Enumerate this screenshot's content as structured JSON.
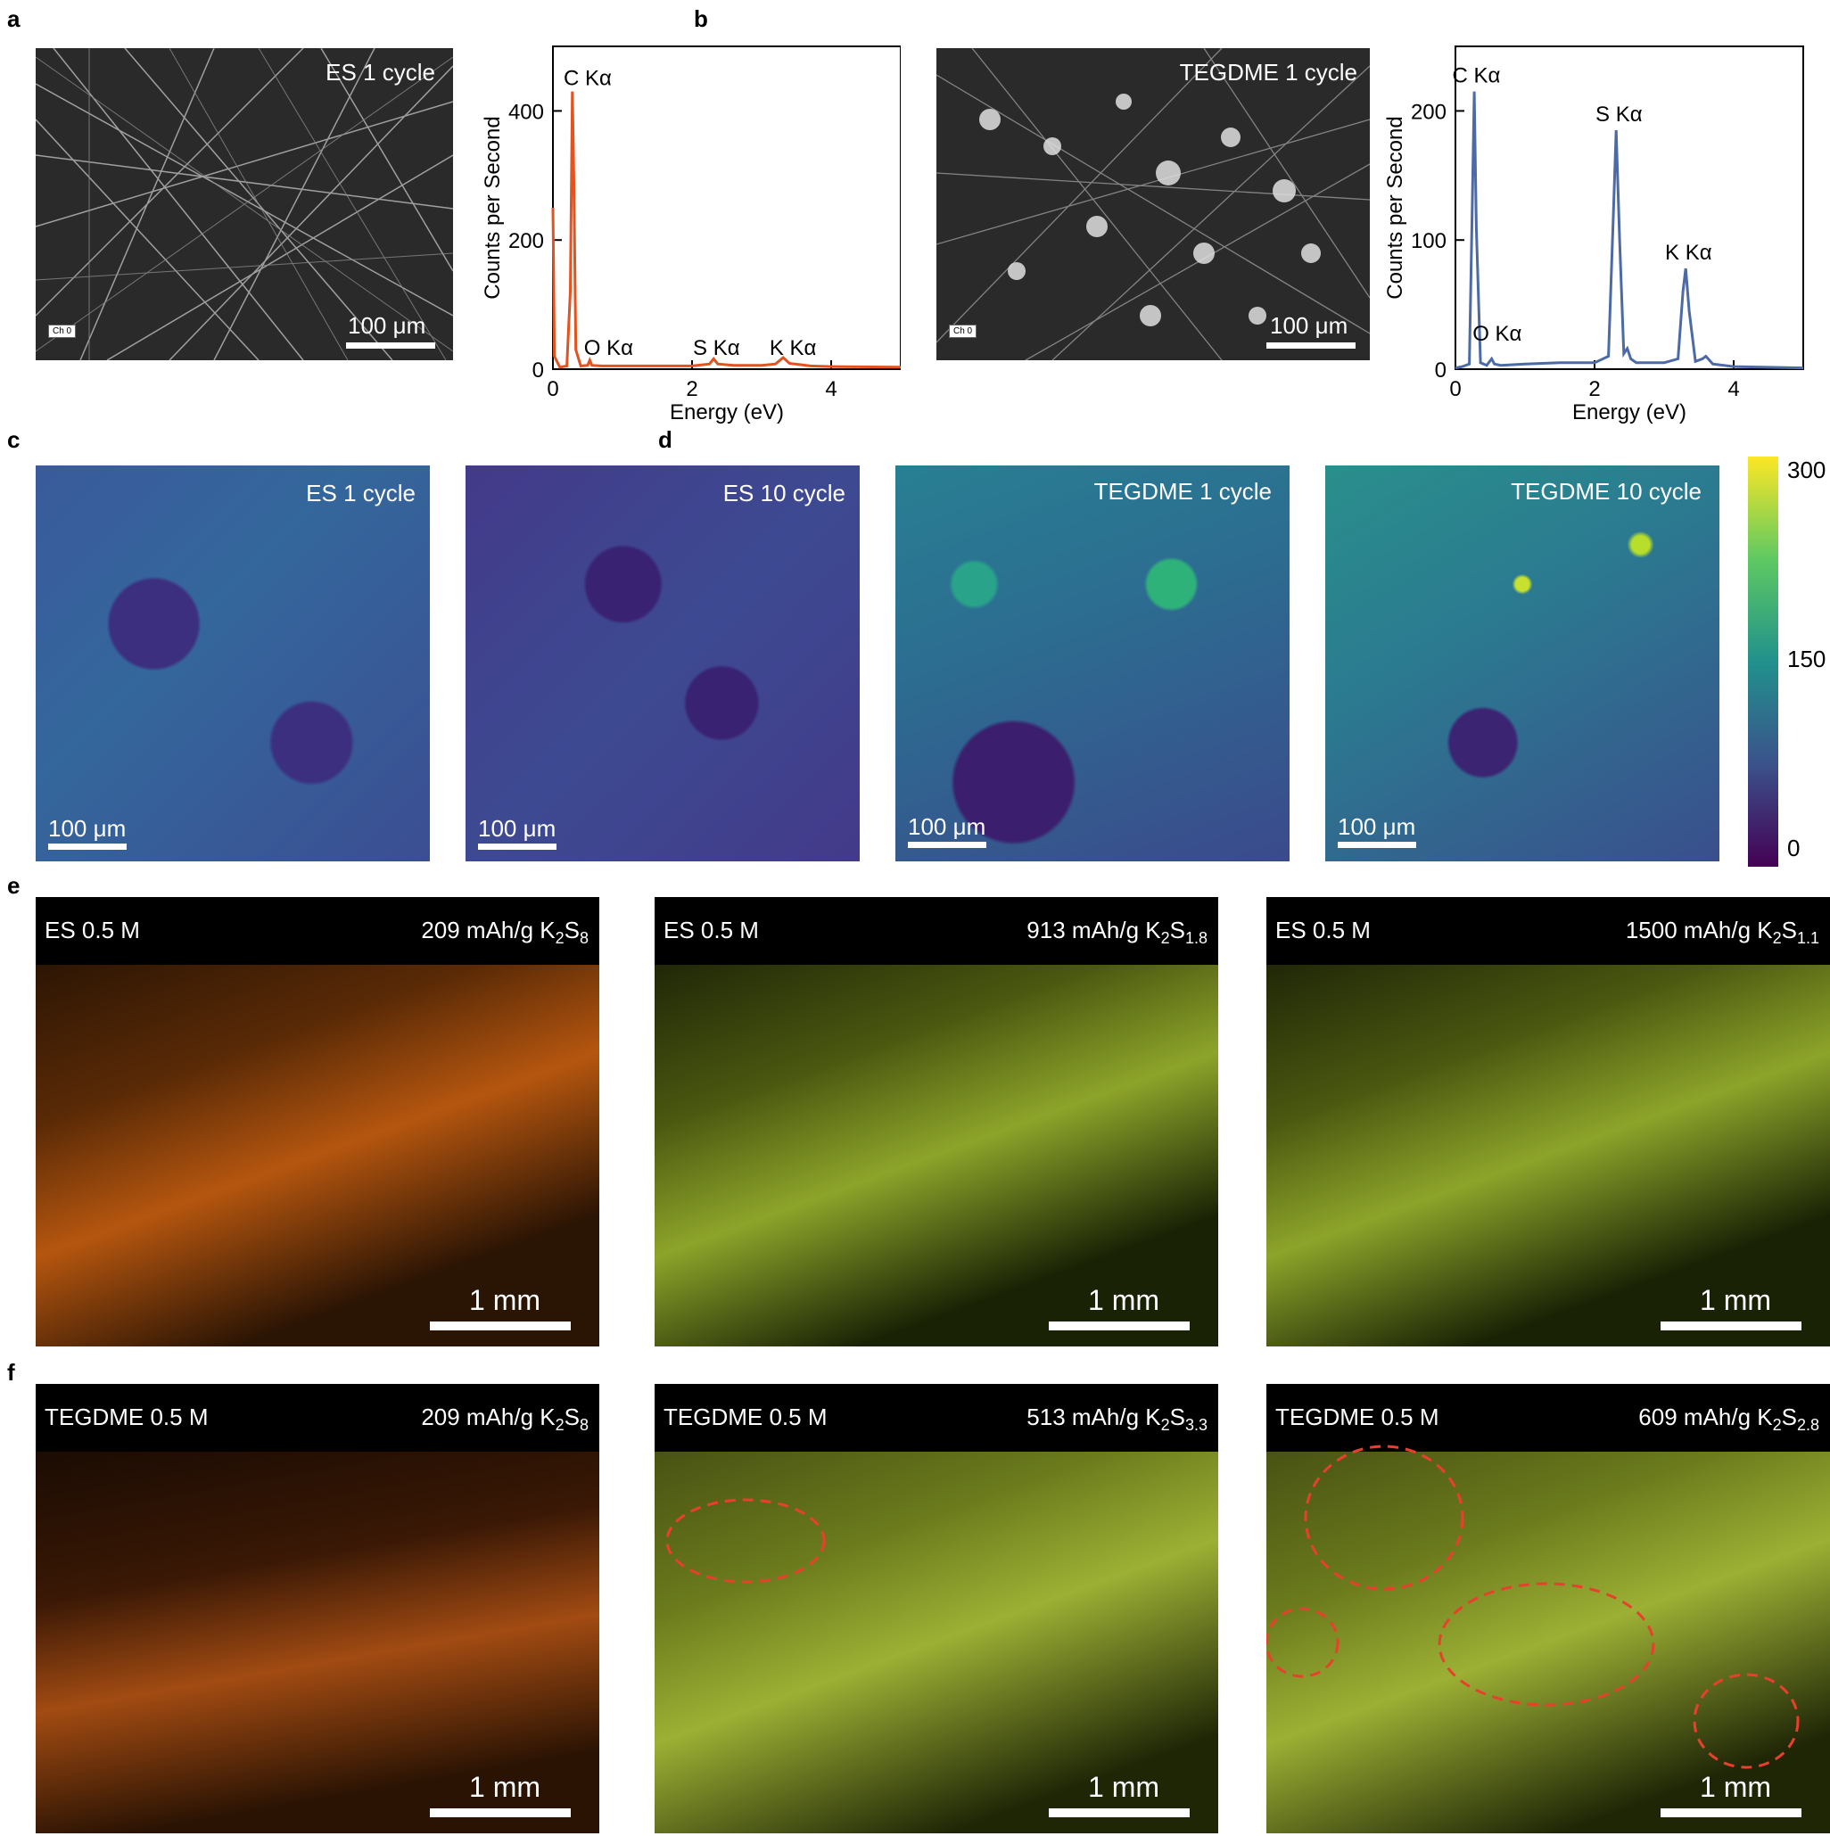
{
  "panels": {
    "a": "a",
    "b": "b",
    "c": "c",
    "d": "d",
    "e": "e",
    "f": "f"
  },
  "sem": [
    {
      "label": "ES 1 cycle",
      "scale": "100 μm",
      "channel": "Ch 0"
    },
    {
      "label": "TEGDME 1 cycle",
      "scale": "100 μm",
      "channel": "Ch 0"
    }
  ],
  "maps": [
    {
      "label": "ES 1 cycle",
      "scale": "100 μm"
    },
    {
      "label": "ES 10 cycle",
      "scale": "100 μm"
    },
    {
      "label": "TEGDME 1 cycle",
      "scale": "100 μm"
    },
    {
      "label": "TEGDME 10 cycle",
      "scale": "100 μm"
    }
  ],
  "colorbar": {
    "ticks": [
      "300",
      "150",
      "0"
    ],
    "colors": [
      "#fde725",
      "#21918c",
      "#440154"
    ]
  },
  "photos_e": [
    {
      "left": "ES 0.5 M",
      "cap_pre": "209 mAh/g K",
      "sub1": "2",
      "cap_mid": "S",
      "sub2": "8",
      "scale": "1 mm",
      "tone": "orange"
    },
    {
      "left": "ES 0.5 M",
      "cap_pre": "913 mAh/g K",
      "sub1": "2",
      "cap_mid": "S",
      "sub2": "1.8",
      "scale": "1 mm",
      "tone": "green"
    },
    {
      "left": "ES 0.5 M",
      "cap_pre": "1500 mAh/g K",
      "sub1": "2",
      "cap_mid": "S",
      "sub2": "1.1",
      "scale": "1 mm",
      "tone": "green"
    }
  ],
  "photos_f": [
    {
      "left": "TEGDME 0.5 M",
      "cap_pre": "209 mAh/g K",
      "sub1": "2",
      "cap_mid": "S",
      "sub2": "8",
      "scale": "1 mm",
      "tone": "orange"
    },
    {
      "left": "TEGDME 0.5 M",
      "cap_pre": "513 mAh/g K",
      "sub1": "2",
      "cap_mid": "S",
      "sub2": "3.3",
      "scale": "1 mm",
      "tone": "green"
    },
    {
      "left": "TEGDME 0.5 M",
      "cap_pre": "609 mAh/g K",
      "sub1": "2",
      "cap_mid": "S",
      "sub2": "2.8",
      "scale": "1 mm",
      "tone": "green"
    }
  ],
  "colors": {
    "series_a": "#e2531f",
    "series_b": "#4c6aa6",
    "dashed_circle": "#e8402c"
  },
  "chart_data": [
    {
      "type": "line",
      "xlabel": "Energy (eV)",
      "ylabel": "Counts per Second",
      "xlim": [
        0,
        5
      ],
      "ylim": [
        0,
        500
      ],
      "xticks": [
        0,
        2,
        4
      ],
      "yticks": [
        0,
        200,
        400
      ],
      "grid": false,
      "x": [
        0.0,
        0.01,
        0.02,
        0.1,
        0.2,
        0.25,
        0.28,
        0.3,
        0.33,
        0.4,
        0.5,
        0.53,
        0.56,
        0.7,
        1.0,
        1.5,
        2.0,
        2.25,
        2.31,
        2.37,
        2.6,
        3.0,
        3.2,
        3.31,
        3.4,
        3.55,
        3.7,
        4.0,
        5.0
      ],
      "y": [
        250,
        150,
        20,
        3,
        5,
        120,
        430,
        300,
        30,
        5,
        6,
        14,
        6,
        5,
        5,
        5,
        5,
        8,
        16,
        8,
        6,
        6,
        8,
        18,
        9,
        7,
        5,
        4,
        3
      ],
      "annotations": [
        "C Kα",
        "O Kα",
        "S Kα",
        "K Kα"
      ]
    },
    {
      "type": "line",
      "xlabel": "Energy (eV)",
      "ylabel": "Counts per Second",
      "xlim": [
        0,
        5
      ],
      "ylim": [
        0,
        250
      ],
      "xticks": [
        0,
        2,
        4
      ],
      "yticks": [
        0,
        100,
        200
      ],
      "grid": false,
      "x": [
        0.0,
        0.1,
        0.2,
        0.24,
        0.27,
        0.3,
        0.36,
        0.45,
        0.52,
        0.56,
        0.65,
        1.0,
        1.5,
        2.0,
        2.2,
        2.27,
        2.31,
        2.36,
        2.42,
        2.47,
        2.52,
        2.6,
        3.0,
        3.2,
        3.27,
        3.31,
        3.36,
        3.45,
        3.55,
        3.6,
        3.7,
        4.0,
        5.0
      ],
      "y": [
        1,
        2,
        4,
        120,
        215,
        110,
        5,
        3,
        8,
        4,
        3,
        4,
        5,
        5,
        10,
        120,
        185,
        100,
        12,
        16,
        8,
        5,
        5,
        8,
        60,
        78,
        45,
        6,
        8,
        10,
        4,
        2,
        1
      ],
      "annotations": [
        "C Kα",
        "O Kα",
        "S Kα",
        "K Kα"
      ]
    }
  ]
}
